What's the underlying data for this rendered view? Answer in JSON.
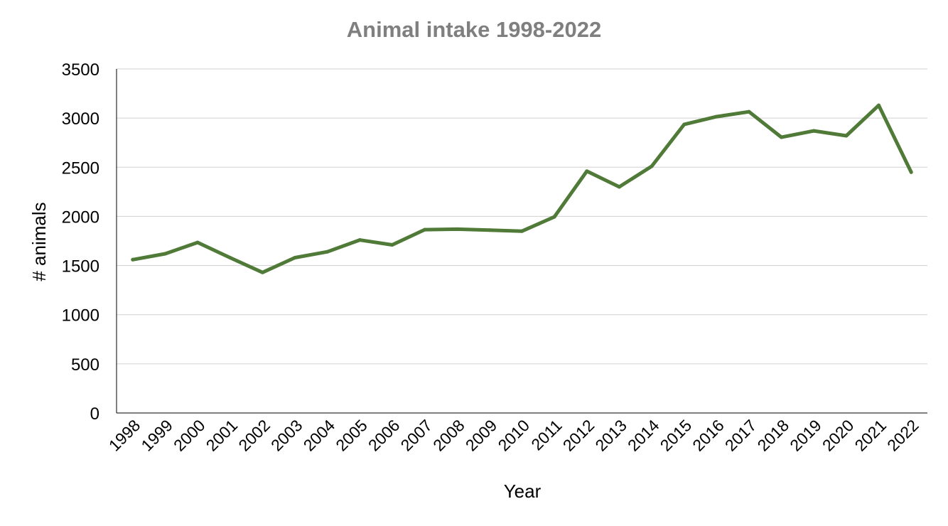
{
  "chart_data": {
    "type": "line",
    "title": "Animal intake 1998-2022",
    "xlabel": "Year",
    "ylabel": "# animals",
    "ylim": [
      0,
      3500
    ],
    "yticks": [
      "0",
      "500",
      "1000",
      "1500",
      "2000",
      "2500",
      "3000",
      "3500"
    ],
    "grid": "horizontal",
    "legend": "none",
    "categories": [
      "1998",
      "1999",
      "2000",
      "2001",
      "2002",
      "2003",
      "2004",
      "2005",
      "2006",
      "2007",
      "2008",
      "2009",
      "2010",
      "2011",
      "2012",
      "2013",
      "2014",
      "2015",
      "2016",
      "2017",
      "2018",
      "2019",
      "2020",
      "2021",
      "2022"
    ],
    "series": [
      {
        "color": "#507a37",
        "values": [
          1560,
          1620,
          1735,
          1580,
          1430,
          1580,
          1640,
          1760,
          1710,
          1865,
          1870,
          1860,
          1850,
          1995,
          2460,
          2300,
          2510,
          2935,
          3015,
          3065,
          2805,
          2870,
          2820,
          3130,
          2450
        ]
      }
    ],
    "colors": {
      "title": "#7f7f7f",
      "gridline": "#d0d0d0",
      "axis": "#000000",
      "text": "#000000"
    }
  }
}
